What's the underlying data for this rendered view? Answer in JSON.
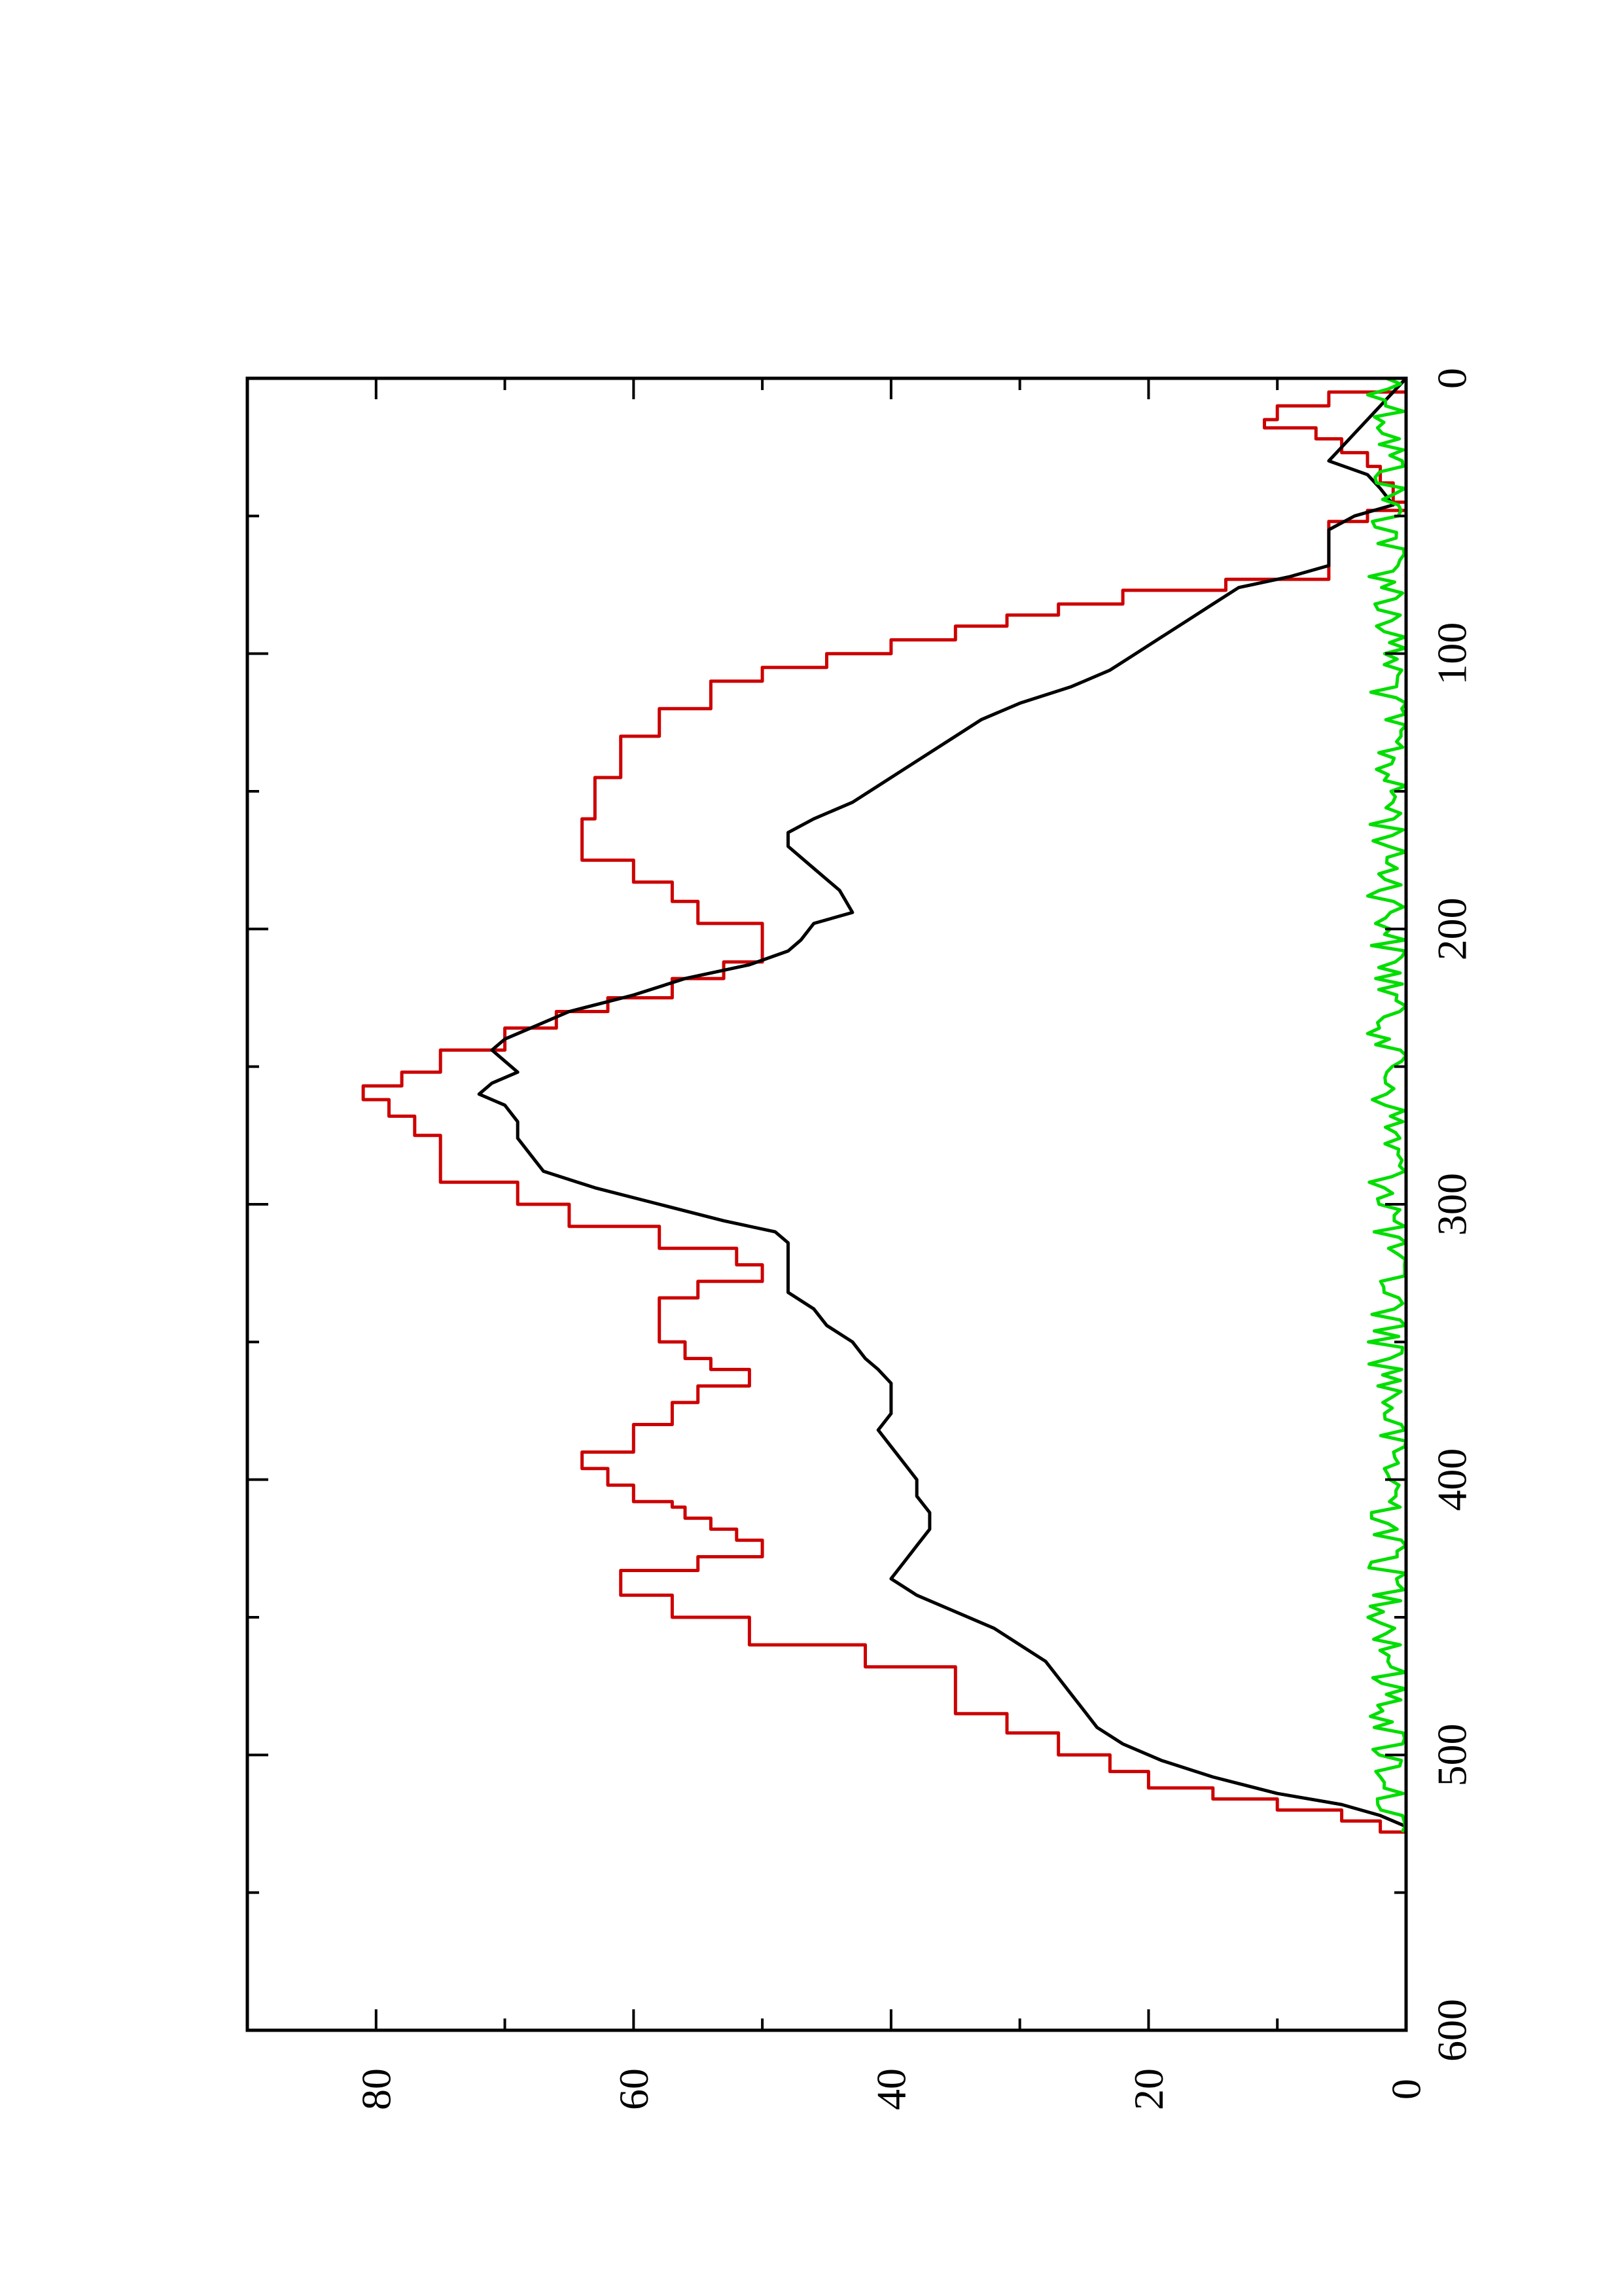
{
  "chart_data": {
    "type": "line",
    "title": "",
    "xlabel": "",
    "ylabel": "",
    "orientation": "rotated-90-ccw",
    "xlim": [
      0,
      600
    ],
    "ylim": [
      0,
      90
    ],
    "x_ticks_major": [
      0,
      100,
      200,
      300,
      400,
      500,
      600
    ],
    "x_tick_labels": [
      "0",
      "100",
      "200",
      "300",
      "400",
      "500",
      "600"
    ],
    "y_ticks_major": [
      0,
      20,
      40,
      60,
      80
    ],
    "y_tick_labels": [
      "0",
      "20",
      "40",
      "60",
      "80"
    ],
    "grid": false,
    "legend": "none",
    "series": [
      {
        "color": "#cc0000",
        "step": true,
        "points": [
          [
            0,
            0
          ],
          [
            5,
            6
          ],
          [
            10,
            10
          ],
          [
            15,
            11
          ],
          [
            18,
            7
          ],
          [
            22,
            5
          ],
          [
            27,
            3
          ],
          [
            32,
            2
          ],
          [
            38,
            1
          ],
          [
            45,
            0
          ],
          [
            48,
            3
          ],
          [
            52,
            6
          ],
          [
            70,
            6
          ],
          [
            73,
            14
          ],
          [
            77,
            22
          ],
          [
            82,
            27
          ],
          [
            86,
            31
          ],
          [
            90,
            35
          ],
          [
            95,
            40
          ],
          [
            100,
            45
          ],
          [
            105,
            50
          ],
          [
            110,
            54
          ],
          [
            120,
            58
          ],
          [
            130,
            61
          ],
          [
            145,
            63
          ],
          [
            160,
            64
          ],
          [
            170,
            64
          ],
          [
            175,
            60
          ],
          [
            183,
            57
          ],
          [
            190,
            55
          ],
          [
            198,
            50
          ],
          [
            208,
            50
          ],
          [
            212,
            53
          ],
          [
            218,
            57
          ],
          [
            225,
            62
          ],
          [
            230,
            66
          ],
          [
            236,
            70
          ],
          [
            244,
            75
          ],
          [
            252,
            78
          ],
          [
            257,
            81
          ],
          [
            262,
            79
          ],
          [
            268,
            77
          ],
          [
            275,
            75
          ],
          [
            285,
            75
          ],
          [
            292,
            69
          ],
          [
            300,
            65
          ],
          [
            308,
            58
          ],
          [
            316,
            52
          ],
          [
            322,
            50
          ],
          [
            328,
            55
          ],
          [
            334,
            58
          ],
          [
            344,
            58
          ],
          [
            350,
            56
          ],
          [
            356,
            54
          ],
          [
            360,
            51
          ],
          [
            366,
            55
          ],
          [
            372,
            57
          ],
          [
            380,
            60
          ],
          [
            390,
            64
          ],
          [
            396,
            62
          ],
          [
            402,
            60
          ],
          [
            408,
            57
          ],
          [
            410,
            56
          ],
          [
            414,
            54
          ],
          [
            418,
            52
          ],
          [
            422,
            50
          ],
          [
            428,
            55
          ],
          [
            433,
            61
          ],
          [
            442,
            57
          ],
          [
            450,
            51
          ],
          [
            460,
            42
          ],
          [
            468,
            35
          ],
          [
            478,
            35
          ],
          [
            485,
            31
          ],
          [
            492,
            27
          ],
          [
            500,
            23
          ],
          [
            506,
            20
          ],
          [
            512,
            15
          ],
          [
            516,
            10
          ],
          [
            520,
            5
          ],
          [
            524,
            2
          ],
          [
            528,
            0
          ]
        ]
      },
      {
        "color": "#000000",
        "step": false,
        "points": [
          [
            0,
            0
          ],
          [
            5,
            1
          ],
          [
            10,
            2
          ],
          [
            15,
            3
          ],
          [
            20,
            4
          ],
          [
            25,
            5
          ],
          [
            30,
            6
          ],
          [
            35,
            3
          ],
          [
            40,
            2
          ],
          [
            46,
            1
          ],
          [
            50,
            4
          ],
          [
            55,
            6
          ],
          [
            62,
            6
          ],
          [
            68,
            6
          ],
          [
            72,
            9
          ],
          [
            76,
            13
          ],
          [
            82,
            15
          ],
          [
            88,
            17
          ],
          [
            94,
            19
          ],
          [
            100,
            21
          ],
          [
            106,
            23
          ],
          [
            112,
            26
          ],
          [
            118,
            30
          ],
          [
            124,
            33
          ],
          [
            130,
            35
          ],
          [
            136,
            37
          ],
          [
            142,
            39
          ],
          [
            148,
            41
          ],
          [
            154,
            43
          ],
          [
            160,
            46
          ],
          [
            165,
            48
          ],
          [
            170,
            48
          ],
          [
            178,
            46
          ],
          [
            186,
            44
          ],
          [
            194,
            43
          ],
          [
            198,
            46
          ],
          [
            204,
            47
          ],
          [
            208,
            48
          ],
          [
            213,
            51
          ],
          [
            218,
            56
          ],
          [
            224,
            60
          ],
          [
            230,
            65
          ],
          [
            236,
            68
          ],
          [
            240,
            70
          ],
          [
            244,
            71
          ],
          [
            248,
            70
          ],
          [
            252,
            69
          ],
          [
            256,
            71
          ],
          [
            260,
            72
          ],
          [
            264,
            70
          ],
          [
            270,
            69
          ],
          [
            276,
            69
          ],
          [
            282,
            68
          ],
          [
            288,
            67
          ],
          [
            294,
            63
          ],
          [
            300,
            58
          ],
          [
            306,
            53
          ],
          [
            310,
            49
          ],
          [
            314,
            48
          ],
          [
            320,
            48
          ],
          [
            326,
            48
          ],
          [
            332,
            48
          ],
          [
            338,
            46
          ],
          [
            344,
            45
          ],
          [
            350,
            43
          ],
          [
            356,
            42
          ],
          [
            360,
            41
          ],
          [
            365,
            40
          ],
          [
            370,
            40
          ],
          [
            376,
            40
          ],
          [
            382,
            41
          ],
          [
            388,
            40
          ],
          [
            394,
            39
          ],
          [
            400,
            38
          ],
          [
            406,
            38
          ],
          [
            412,
            37
          ],
          [
            418,
            37
          ],
          [
            424,
            38
          ],
          [
            430,
            39
          ],
          [
            436,
            40
          ],
          [
            442,
            38
          ],
          [
            448,
            35
          ],
          [
            454,
            32
          ],
          [
            460,
            30
          ],
          [
            466,
            28
          ],
          [
            472,
            27
          ],
          [
            478,
            26
          ],
          [
            484,
            25
          ],
          [
            490,
            24
          ],
          [
            496,
            22
          ],
          [
            502,
            19
          ],
          [
            508,
            15
          ],
          [
            514,
            10
          ],
          [
            518,
            5
          ],
          [
            522,
            2
          ],
          [
            526,
            0
          ]
        ]
      },
      {
        "color": "#00dd00",
        "step": false,
        "noise_range": [
          0,
          3
        ],
        "x_range": [
          0,
          528
        ],
        "sample_step": 2
      }
    ]
  }
}
